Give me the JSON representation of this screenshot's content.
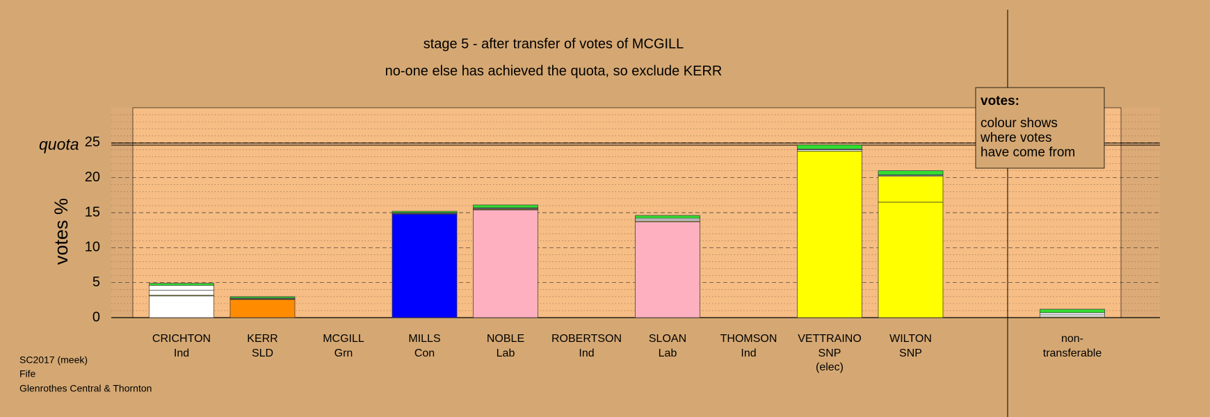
{
  "chart_data": {
    "type": "bar",
    "stacked": true,
    "title": "stage 5 - after transfer of votes of MCGILL",
    "subtitle": "no-one else has achieved the quota, so exclude KERR",
    "y_label": "votes %",
    "categories": [
      "CRICHTON",
      "KERR",
      "MCGILL",
      "MILLS",
      "NOBLE",
      "ROBERTSON",
      "SLOAN",
      "THOMSON",
      "VETTRAINO",
      "WILTON",
      "non-"
    ],
    "parties": [
      "Ind",
      "SLD",
      "Grn",
      "Con",
      "Lab",
      "Ind",
      "Lab",
      "Ind",
      "SNP",
      "SNP",
      "transferable"
    ],
    "category_notes": [
      null,
      null,
      null,
      null,
      null,
      null,
      null,
      null,
      "(elec)",
      null,
      null
    ],
    "series": [
      {
        "colors": [
          "#ffffff",
          "#ff8c00",
          "#00c800",
          "#0000ff",
          "#ffb0c0",
          "#ffffff",
          "#ffb0c0",
          "#ffffff",
          "#ffff00",
          "#ffff00",
          null
        ],
        "values": [
          3.1,
          2.6,
          0,
          14.8,
          15.4,
          0,
          13.7,
          0,
          23.8,
          16.5,
          null
        ]
      },
      {
        "color": "#ffff00",
        "values": [
          0.1,
          0.05,
          null,
          0.05,
          0.1,
          null,
          0.1,
          null,
          null,
          3.7,
          0.1
        ]
      },
      {
        "color": "#ffffff",
        "values": [
          0.7,
          0.1,
          null,
          0.1,
          0.1,
          null,
          0.2,
          null,
          0.2,
          0.1,
          0.3
        ]
      },
      {
        "color": "#ffffff",
        "values": [
          0.7,
          0.05,
          null,
          0.05,
          0.1,
          null,
          0.2,
          null,
          0.1,
          0.1,
          0.3
        ]
      },
      {
        "color": "#33dd33",
        "values": [
          0.3,
          0.2,
          null,
          0.2,
          0.4,
          null,
          0.4,
          null,
          0.6,
          0.6,
          0.5
        ]
      }
    ],
    "quota": {
      "value": 24.8,
      "label": "quota"
    },
    "ylim": [
      0,
      30
    ],
    "yticks": [
      0,
      5,
      10,
      15,
      20,
      25
    ],
    "yminor": [
      1,
      2,
      3,
      4,
      6,
      7,
      8,
      9,
      11,
      12,
      13,
      14,
      16,
      17,
      18,
      19,
      21,
      22,
      23,
      24,
      26,
      27,
      28,
      29
    ],
    "grid": true,
    "legend": {
      "title": "votes:",
      "lines": [
        "colour shows",
        "where votes",
        "have come from"
      ]
    },
    "footer": [
      "SC2017 (meek)",
      "Fife",
      "Glenrothes Central & Thornton"
    ]
  }
}
